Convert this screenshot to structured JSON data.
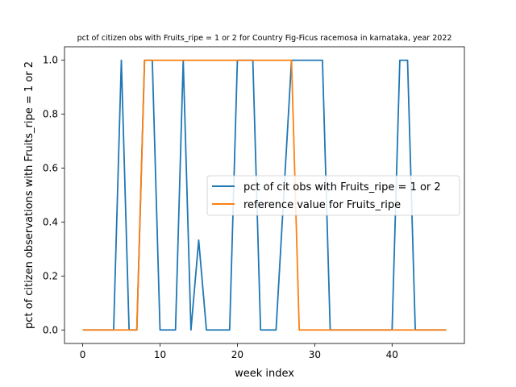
{
  "chart_data": {
    "type": "line",
    "title": "pct of citizen obs with Fruits_ripe = 1 or 2 for Country Fig-Ficus racemosa in karnataka, year 2022",
    "xlabel": "week index",
    "ylabel": "pct of citizen observations with Fruits_ripe = 1 or 2",
    "xlim": [
      -2.35,
      49.35
    ],
    "ylim": [
      -0.05,
      1.05
    ],
    "x_ticks": [
      0,
      10,
      20,
      30,
      40
    ],
    "y_ticks": [
      0.0,
      0.2,
      0.4,
      0.6,
      0.8,
      1.0
    ],
    "x_tick_labels": [
      "0",
      "10",
      "20",
      "30",
      "40"
    ],
    "y_tick_labels": [
      "0.0",
      "0.2",
      "0.4",
      "0.6",
      "0.8",
      "1.0"
    ],
    "grid": false,
    "legend_position": "center-right",
    "x": [
      0,
      1,
      2,
      3,
      4,
      5,
      6,
      7,
      8,
      9,
      10,
      11,
      12,
      13,
      14,
      15,
      16,
      17,
      18,
      19,
      20,
      21,
      22,
      23,
      24,
      25,
      26,
      27,
      28,
      29,
      30,
      31,
      32,
      33,
      34,
      35,
      36,
      37,
      38,
      39,
      40,
      41,
      42,
      43,
      44,
      45,
      46,
      47
    ],
    "series": [
      {
        "name": "pct of cit obs with Fruits_ripe = 1 or 2",
        "color": "#1f77b4",
        "values": [
          0,
          0,
          0,
          0,
          0,
          1,
          0,
          0,
          1,
          1,
          0,
          0,
          0,
          1,
          0,
          0.3333,
          0,
          0,
          0,
          0,
          1,
          1,
          1,
          0,
          0,
          0,
          0.5,
          1,
          1,
          1,
          1,
          1,
          0,
          0,
          0,
          0,
          0,
          0,
          0,
          0,
          0,
          1,
          1,
          0,
          0,
          0,
          0,
          0
        ]
      },
      {
        "name": "reference value for Fruits_ripe",
        "color": "#ff7f0e",
        "values": [
          0,
          0,
          0,
          0,
          0,
          0,
          0,
          0,
          1,
          1,
          1,
          1,
          1,
          1,
          1,
          1,
          1,
          1,
          1,
          1,
          1,
          1,
          1,
          1,
          1,
          1,
          1,
          1,
          0,
          0,
          0,
          0,
          0,
          0,
          0,
          0,
          0,
          0,
          0,
          0,
          0,
          0,
          0,
          0,
          0,
          0,
          0,
          0
        ]
      }
    ]
  }
}
